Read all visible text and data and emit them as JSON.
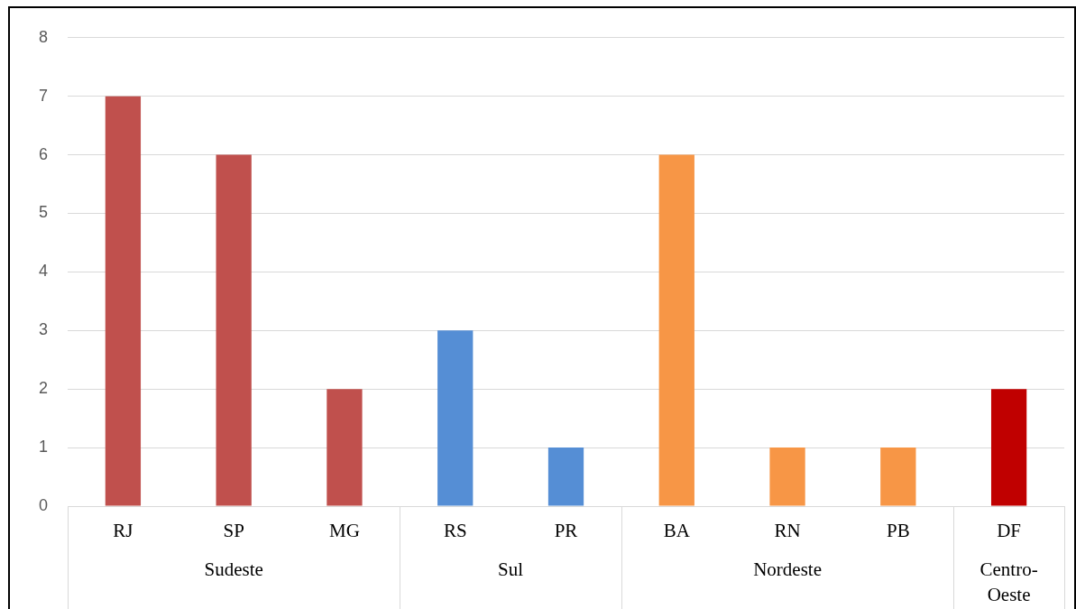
{
  "chart_data": {
    "type": "bar",
    "categories": [
      "RJ",
      "SP",
      "MG",
      "RS",
      "PR",
      "BA",
      "RN",
      "PB",
      "DF"
    ],
    "values": [
      7,
      6,
      2,
      3,
      1,
      6,
      1,
      1,
      2
    ],
    "colors": [
      "#c0504d",
      "#c0504d",
      "#c0504d",
      "#558ed5",
      "#558ed5",
      "#f79646",
      "#f79646",
      "#f79646",
      "#c00000"
    ],
    "ylim": [
      0,
      8
    ],
    "yticks": [
      0,
      1,
      2,
      3,
      4,
      5,
      6,
      7,
      8
    ],
    "grid": "y",
    "legend": false,
    "annotations": [
      "Sudeste",
      "Sul",
      "Nordeste",
      "Centro-Oeste"
    ]
  }
}
